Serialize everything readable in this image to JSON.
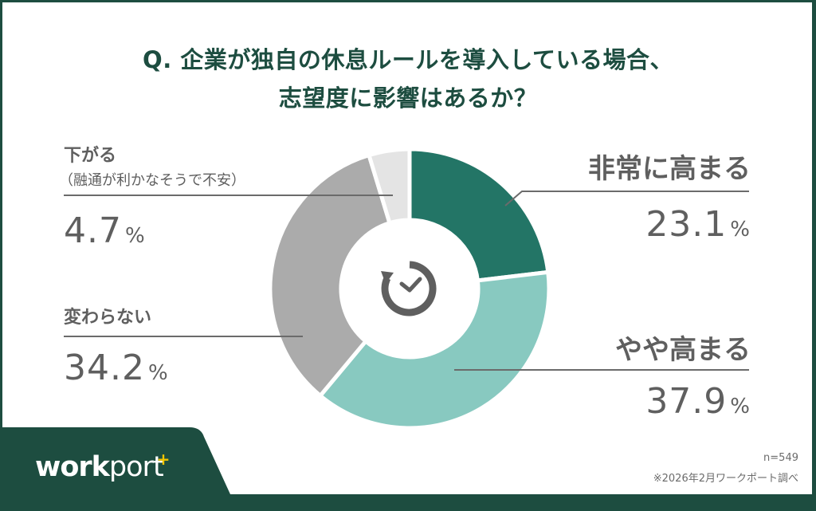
{
  "title": {
    "line1": "Q. 企業が独自の休息ルールを導入している場合、",
    "line2": "志望度に影響はあるか？"
  },
  "labels": {
    "very_high": {
      "label": "非常に高まる",
      "value": "23.1",
      "unit": "%"
    },
    "somewhat_high": {
      "label": "やや高まる",
      "value": "37.9",
      "unit": "%"
    },
    "no_change": {
      "label": "変わらない",
      "value": "34.2",
      "unit": "%"
    },
    "lower": {
      "label": "下がる",
      "sublabel": "（融通が利かなそうで不安）",
      "value": "4.7",
      "unit": "%"
    }
  },
  "center_icon": "clock-refresh-icon",
  "footer": {
    "logo": {
      "part1": "work",
      "part2": "port",
      "plus": "+"
    },
    "sample": "n=549",
    "source": "※2026年2月ワークポート調べ"
  },
  "colors": {
    "frame": "#1d4d40",
    "title": "#1d4d40",
    "very_high": "#237566",
    "somewhat_high": "#88c9c0",
    "no_change": "#ababab",
    "lower": "#e4e4e4",
    "text": "#5f5f5f",
    "logo_plus": "#f2c500"
  },
  "chart_data": {
    "type": "pie",
    "variant": "donut",
    "title": "Q. 企業が独自の休息ルールを導入している場合、志望度に影響はあるか？",
    "categories": [
      "非常に高まる",
      "やや高まる",
      "変わらない",
      "下がる（融通が利かなそうで不安）"
    ],
    "values": [
      23.1,
      37.9,
      34.2,
      4.7
    ],
    "unit": "%",
    "colors": [
      "#237566",
      "#88c9c0",
      "#ababab",
      "#e4e4e4"
    ],
    "start_angle": "12 o'clock, clockwise",
    "n": 549,
    "source": "※2026年2月ワークポート調べ",
    "legend": "direct labels with leader lines"
  }
}
